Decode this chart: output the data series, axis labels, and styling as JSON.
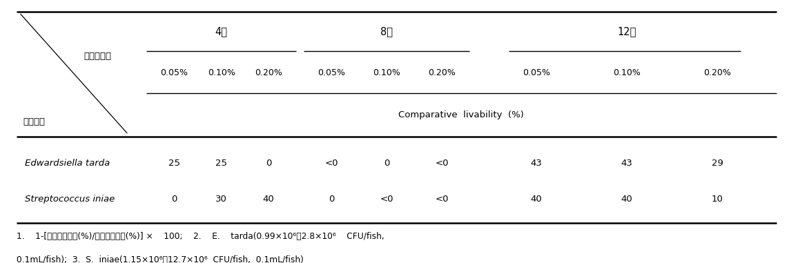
{
  "period_label": "기간・농도",
  "bacteria_label": "어병세균",
  "period_groups": [
    "4주",
    "8주",
    "12주"
  ],
  "conc_labels": [
    "0.05%",
    "0.10%",
    "0.20%",
    "0.05%",
    "0.10%",
    "0.20%",
    "0.05%",
    "0.10%",
    "0.20%"
  ],
  "subheader": "Comparative  livability  (%)",
  "rows": [
    {
      "name": "Edwardsiella tarda",
      "values": [
        "25",
        "25",
        "0",
        "<0",
        "0",
        "<0",
        "43",
        "43",
        "29"
      ]
    },
    {
      "name": "Streptococcus iniae",
      "values": [
        "0",
        "30",
        "40",
        "0",
        "<0",
        "<0",
        "40",
        "40",
        "10"
      ]
    }
  ],
  "footnote_line1": "1.    1-[치리구포사율(%)/대조구포사율(%)] ×    100;    2.    E.    tarda(0.99×10⁶～2.8×10⁶    CFU/fish,",
  "footnote_line2": "0.1mL/fish);  3.  S.  iniae(1.15×10⁶～12.7×10⁶  CFU/fish,  0.1mL/fish)"
}
